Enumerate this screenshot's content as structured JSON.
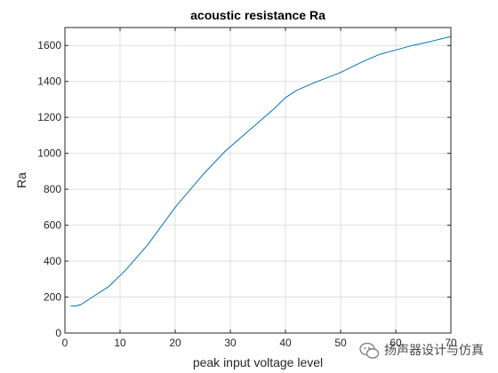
{
  "chart_data": {
    "type": "line",
    "title": "acoustic resistance Ra",
    "xlabel": "peak input voltage level",
    "ylabel": "Ra",
    "xlim": [
      0,
      70
    ],
    "ylim": [
      0,
      1700
    ],
    "xticks": [
      0,
      10,
      20,
      30,
      40,
      50,
      60,
      70
    ],
    "yticks": [
      0,
      200,
      400,
      600,
      800,
      1000,
      1200,
      1400,
      1600
    ],
    "grid": true,
    "legend": "none",
    "series": [
      {
        "color": "#0072BD",
        "x": [
          1,
          2,
          3,
          5,
          8,
          11,
          15,
          20,
          25,
          29,
          32,
          35,
          38,
          40,
          42,
          45,
          50,
          54,
          57,
          60,
          63,
          66,
          70
        ],
        "y": [
          150,
          150,
          160,
          200,
          260,
          350,
          490,
          700,
          880,
          1010,
          1090,
          1170,
          1250,
          1310,
          1350,
          1390,
          1450,
          1510,
          1550,
          1575,
          1600,
          1620,
          1650
        ]
      }
    ]
  },
  "watermark": {
    "text": "扬声器设计与仿真",
    "icon": "wechat-icon"
  }
}
